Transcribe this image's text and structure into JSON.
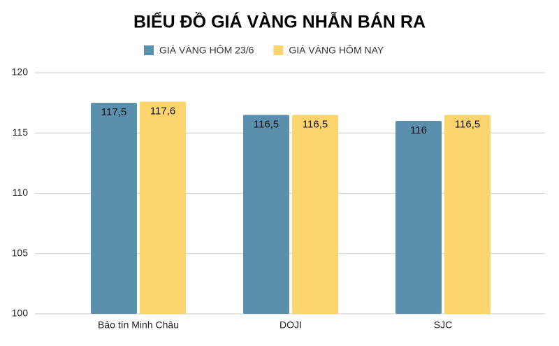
{
  "chart_data": {
    "type": "bar",
    "title": "BIỂU ĐỒ GIÁ VÀNG NHẪN BÁN RA",
    "categories": [
      "Bảo tín Minh Châu",
      "DOJI",
      "SJC"
    ],
    "series": [
      {
        "name": "GIÁ VÀNG HÔM 23/6",
        "color": "#5b8fae",
        "values": [
          117.5,
          116.5,
          116
        ],
        "value_labels": [
          "117,5",
          "116,5",
          "116"
        ]
      },
      {
        "name": "GIÁ VÀNG HÔM NAY",
        "color": "#fdd56e",
        "values": [
          117.6,
          116.5,
          116.5
        ],
        "value_labels": [
          "117,6",
          "116,5",
          "116,5"
        ]
      }
    ],
    "ylim": [
      100,
      120
    ],
    "yticks": [
      100,
      105,
      110,
      115,
      120
    ],
    "grid": true,
    "legend": "top"
  }
}
